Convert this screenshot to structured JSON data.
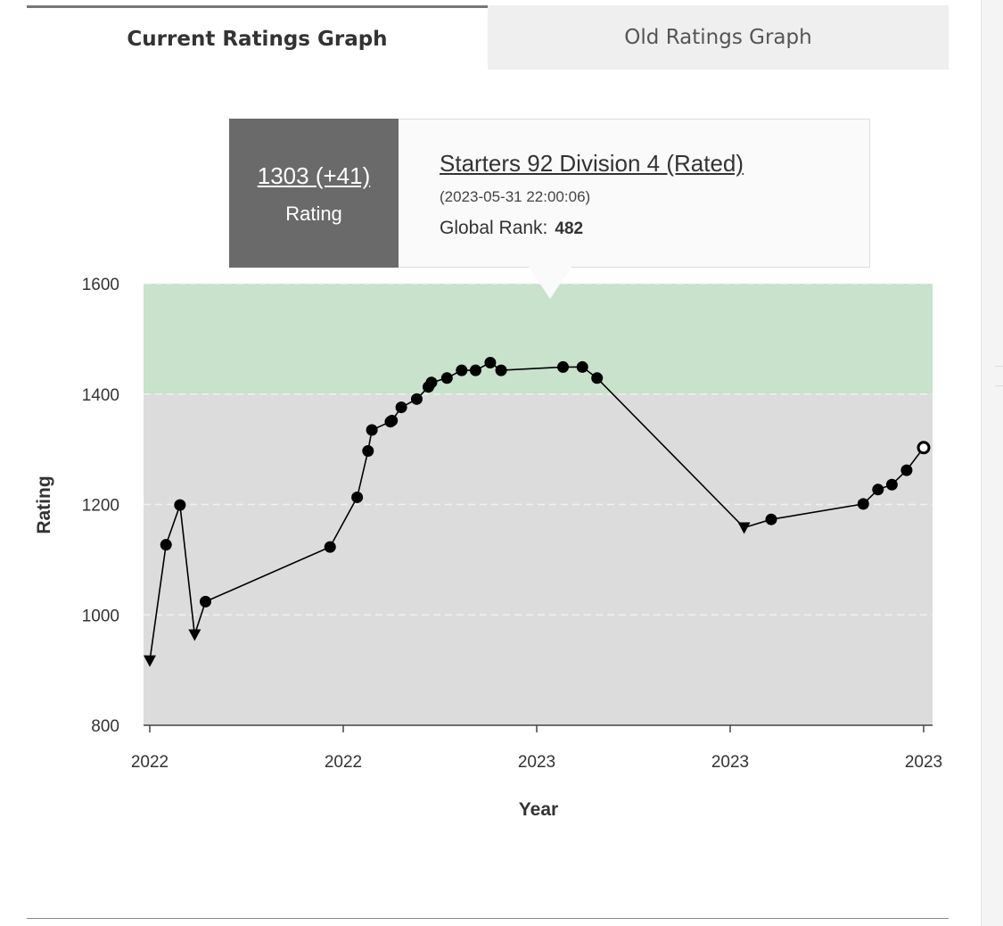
{
  "tabs": {
    "current": "Current Ratings Graph",
    "old": "Old Ratings Graph"
  },
  "tooltip": {
    "rating_value": "1303 (+41)",
    "rating_label": "Rating",
    "contest_name": "Starters 92 Division 4 (Rated)",
    "datetime": "(2023-05-31 22:00:06)",
    "rank_label": "Global Rank:",
    "rank_value": "482"
  },
  "colors": {
    "band_green": "#c8e2cc",
    "band_gray": "#dcdcdc",
    "line": "#000000",
    "tooltip_dark": "#6a6a6a"
  },
  "chart_data": {
    "type": "line",
    "title": "",
    "xlabel": "Year",
    "ylabel": "Rating",
    "ylim": [
      800,
      1600
    ],
    "xlim": [
      0,
      1
    ],
    "yticks": [
      800,
      1000,
      1200,
      1400,
      1600
    ],
    "xticks": [
      {
        "x": 0.0,
        "label": "2022"
      },
      {
        "x": 0.25,
        "label": "2022"
      },
      {
        "x": 0.5,
        "label": "2023"
      },
      {
        "x": 0.75,
        "label": "2023"
      },
      {
        "x": 1.0,
        "label": "2023"
      }
    ],
    "bands": [
      {
        "from": 800,
        "to": 1400,
        "color": "#dcdcdc"
      },
      {
        "from": 1400,
        "to": 1600,
        "color": "#c8e2cc"
      }
    ],
    "series": [
      {
        "name": "Rating",
        "points": [
          {
            "x": 0.0,
            "y": 917,
            "marker": "triangle-down"
          },
          {
            "x": 0.021,
            "y": 1127,
            "marker": "circle"
          },
          {
            "x": 0.039,
            "y": 1199,
            "marker": "circle"
          },
          {
            "x": 0.058,
            "y": 964,
            "marker": "triangle-down"
          },
          {
            "x": 0.072,
            "y": 1024,
            "marker": "circle"
          },
          {
            "x": 0.233,
            "y": 1123,
            "marker": "circle"
          },
          {
            "x": 0.268,
            "y": 1213,
            "marker": "circle"
          },
          {
            "x": 0.282,
            "y": 1297,
            "marker": "circle"
          },
          {
            "x": 0.287,
            "y": 1335,
            "marker": "circle"
          },
          {
            "x": 0.311,
            "y": 1350,
            "marker": "circle"
          },
          {
            "x": 0.313,
            "y": 1352,
            "marker": "circle"
          },
          {
            "x": 0.325,
            "y": 1376,
            "marker": "circle"
          },
          {
            "x": 0.345,
            "y": 1391,
            "marker": "circle"
          },
          {
            "x": 0.36,
            "y": 1413,
            "marker": "circle"
          },
          {
            "x": 0.364,
            "y": 1421,
            "marker": "circle"
          },
          {
            "x": 0.384,
            "y": 1429,
            "marker": "circle"
          },
          {
            "x": 0.403,
            "y": 1443,
            "marker": "circle"
          },
          {
            "x": 0.421,
            "y": 1443,
            "marker": "circle"
          },
          {
            "x": 0.44,
            "y": 1457,
            "marker": "circle"
          },
          {
            "x": 0.454,
            "y": 1443,
            "marker": "circle"
          },
          {
            "x": 0.534,
            "y": 1449,
            "marker": "circle"
          },
          {
            "x": 0.559,
            "y": 1449,
            "marker": "circle"
          },
          {
            "x": 0.578,
            "y": 1429,
            "marker": "circle"
          },
          {
            "x": 0.768,
            "y": 1158,
            "marker": "triangle-down"
          },
          {
            "x": 0.803,
            "y": 1173,
            "marker": "circle"
          },
          {
            "x": 0.922,
            "y": 1201,
            "marker": "circle"
          },
          {
            "x": 0.941,
            "y": 1227,
            "marker": "circle"
          },
          {
            "x": 0.959,
            "y": 1236,
            "marker": "circle"
          },
          {
            "x": 0.978,
            "y": 1262,
            "marker": "circle"
          },
          {
            "x": 1.0,
            "y": 1303,
            "marker": "open-circle"
          }
        ]
      }
    ]
  }
}
